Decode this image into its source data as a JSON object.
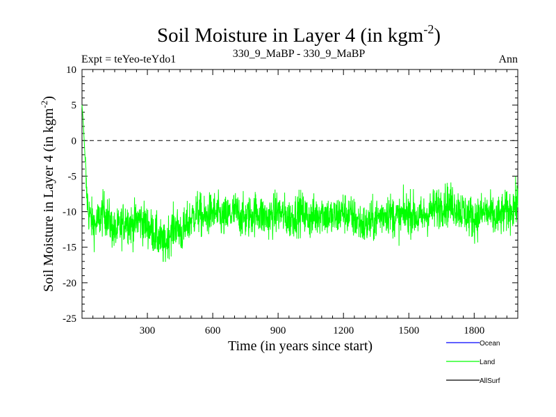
{
  "chart_data": {
    "type": "line",
    "title": "Soil Moisture in Layer 4 (in kgm",
    "title_superscript": "-2",
    "title_close": ")",
    "subtitle_left": "Expt = teYeo-teYdo1",
    "subtitle_center": "330_9_MaBP - 330_9_MaBP",
    "subtitle_right": "Ann",
    "xlabel": "Time (in years since start)",
    "ylabel": "Soil Moisture in Layer 4 (in kgm",
    "ylabel_superscript": "-2",
    "ylabel_close": ")",
    "xlim": [
      0,
      2000
    ],
    "ylim": [
      -25,
      10
    ],
    "x_ticks": [
      300,
      600,
      900,
      1200,
      1500,
      1800
    ],
    "y_ticks": [
      10,
      5,
      0,
      -5,
      -10,
      -15,
      -20,
      -25
    ],
    "reference_line": 0,
    "series": [
      {
        "name": "Ocean",
        "color": "#0000ff",
        "values": []
      },
      {
        "name": "Land",
        "color": "#00ff00",
        "x": [
          0,
          5,
          10,
          15,
          20,
          30,
          40,
          60,
          80,
          100,
          120,
          150,
          180,
          200,
          230,
          260,
          300,
          330,
          360,
          380,
          400,
          430,
          460,
          480,
          500,
          530,
          560,
          600,
          650,
          700,
          750,
          800,
          850,
          900,
          950,
          1000,
          1050,
          1100,
          1150,
          1200,
          1250,
          1300,
          1350,
          1400,
          1450,
          1500,
          1550,
          1600,
          1650,
          1700,
          1750,
          1800,
          1850,
          1900,
          1950,
          2000
        ],
        "values": [
          5,
          3,
          0,
          -3,
          -7,
          -10,
          -11,
          -12,
          -11,
          -10,
          -11,
          -13,
          -12,
          -11,
          -12,
          -11,
          -12,
          -13,
          -14,
          -15,
          -13,
          -12,
          -13,
          -12,
          -11,
          -10,
          -11,
          -10,
          -11,
          -10,
          -11,
          -10,
          -11,
          -10,
          -11,
          -10,
          -11,
          -10,
          -11,
          -10,
          -11,
          -12,
          -11,
          -10,
          -11,
          -10,
          -11,
          -10,
          -9,
          -9,
          -10,
          -11,
          -10,
          -11,
          -10,
          -9
        ]
      },
      {
        "name": "AllSurf",
        "color": "#000000",
        "values": []
      }
    ],
    "legend_position": "bottom-right"
  }
}
